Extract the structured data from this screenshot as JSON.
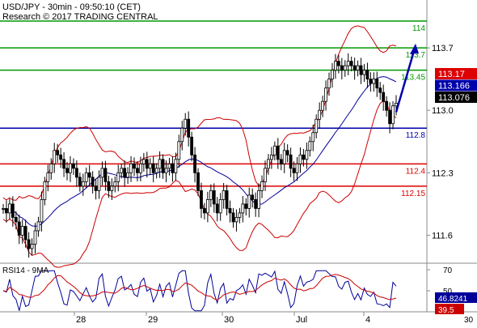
{
  "header": {
    "line1": "USD/JPY - 30min - 09:50:10 (CET)",
    "line2": "Research © 2017 TRADING CENTRAL"
  },
  "colors": {
    "resistance": "#009900",
    "pivot": "#0000aa",
    "support": "#dd0000",
    "bollinger": "#cc0000",
    "ma": "#000099",
    "arrow": "#0000aa",
    "candle": "#000000",
    "rsi_line": "#000099",
    "rsi_ma": "#cc0000"
  },
  "chart_data": [
    {
      "type": "candlestick",
      "title": "USD/JPY - 30min - 09:50:10 (CET)",
      "ylim": [
        111.35,
        114.2
      ],
      "y_ticks": [
        "113.7",
        "113.0",
        "112.3",
        "111.6"
      ],
      "x_ticks": [
        "28",
        "29",
        "30",
        "Jul",
        "4"
      ],
      "levels": [
        {
          "value": 114.0,
          "label": "114",
          "role": "resistance"
        },
        {
          "value": 113.7,
          "label": "113.7",
          "role": "resistance"
        },
        {
          "value": 113.45,
          "label": "113.45",
          "role": "resistance"
        },
        {
          "value": 112.8,
          "label": "112.8",
          "role": "pivot"
        },
        {
          "value": 112.4,
          "label": "112.4",
          "role": "support"
        },
        {
          "value": 112.15,
          "label": "112.15",
          "role": "support"
        }
      ],
      "price_tags": [
        {
          "value": 113.17,
          "label": "113.17",
          "bg": "#dd0000",
          "fg": "#ffffff"
        },
        {
          "value": 113.166,
          "label": "113.166",
          "bg": "#0000aa",
          "fg": "#ffffff"
        },
        {
          "value": 113.076,
          "label": "113.076",
          "bg": "#000000",
          "fg": "#ffffff"
        }
      ],
      "forecast_arrow": {
        "from": [
          123,
          112.98
        ],
        "to": [
          130,
          113.72
        ]
      },
      "close": [
        111.9,
        111.85,
        111.95,
        111.8,
        111.75,
        111.6,
        111.7,
        111.55,
        111.45,
        111.5,
        111.65,
        111.75,
        112.0,
        112.2,
        112.3,
        112.4,
        112.55,
        112.5,
        112.45,
        112.35,
        112.3,
        112.4,
        112.35,
        112.25,
        112.15,
        112.2,
        112.3,
        112.25,
        112.15,
        112.1,
        112.25,
        112.35,
        112.2,
        112.1,
        112.15,
        112.2,
        112.3,
        112.35,
        112.25,
        112.3,
        112.4,
        112.35,
        112.3,
        112.4,
        112.45,
        112.35,
        112.4,
        112.3,
        112.35,
        112.45,
        112.3,
        112.35,
        112.4,
        112.3,
        112.45,
        112.65,
        112.8,
        112.9,
        112.7,
        112.5,
        112.3,
        112.1,
        111.9,
        111.85,
        112.0,
        112.1,
        111.95,
        111.85,
        112.0,
        112.1,
        111.9,
        111.85,
        111.75,
        111.8,
        111.85,
        111.95,
        111.9,
        112.05,
        112.0,
        111.9,
        112.1,
        112.2,
        112.35,
        112.45,
        112.5,
        112.6,
        112.45,
        112.4,
        112.55,
        112.5,
        112.35,
        112.3,
        112.4,
        112.5,
        112.45,
        112.55,
        112.65,
        112.75,
        112.9,
        113.0,
        113.1,
        113.25,
        113.35,
        113.45,
        113.55,
        113.5,
        113.45,
        113.5,
        113.55,
        113.5,
        113.45,
        113.5,
        113.4,
        113.45,
        113.35,
        113.3,
        113.35,
        113.25,
        113.2,
        113.1,
        113.0,
        112.85,
        113.05,
        113.08
      ],
      "rsi": {
        "title": "RSI14 - 9MA",
        "ylim": [
          30,
          70
        ],
        "y_ticks": [
          "70",
          "50",
          "30"
        ],
        "value_tags": [
          {
            "value": 46.8241,
            "label": "46.8241",
            "bg": "#000099",
            "fg": "#ffffff"
          },
          {
            "value": 39.5,
            "label": "39.5",
            "bg": "#cc0000",
            "fg": "#ffffff"
          }
        ]
      }
    }
  ]
}
